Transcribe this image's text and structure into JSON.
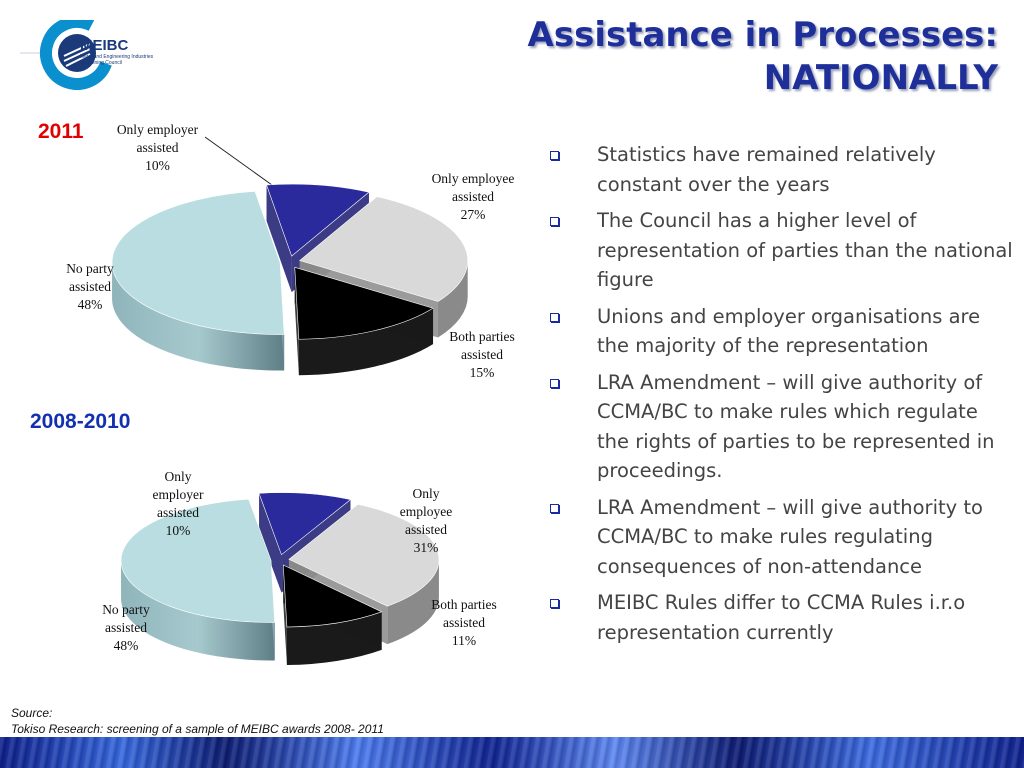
{
  "logo": {
    "text": "MEIBC",
    "subtitle": "Metal and Engineering Industries Bargaining Council"
  },
  "title": {
    "line1": "Assistance in Processes:",
    "line2": "NATIONALLY"
  },
  "chart_data": [
    {
      "type": "pie",
      "title": "2011",
      "slices": [
        {
          "label": "Only employer assisted",
          "value": 10,
          "display": "10%",
          "color": "#2b2a9c"
        },
        {
          "label": "Only employee assisted",
          "value": 27,
          "display": "27%",
          "color": "#d9d9d9"
        },
        {
          "label": "Both parties assisted",
          "value": 15,
          "display": "15%",
          "color": "#000000"
        },
        {
          "label": "No party assisted",
          "value": 48,
          "display": "48%",
          "color": "#b9dde0"
        }
      ]
    },
    {
      "type": "pie",
      "title": "2008-2010",
      "slices": [
        {
          "label": "Only employer assisted",
          "value": 10,
          "display": "10%",
          "color": "#2b2a9c"
        },
        {
          "label": "Only employee assisted",
          "value": 31,
          "display": "31%",
          "color": "#d9d9d9"
        },
        {
          "label": "Both parties assisted",
          "value": 11,
          "display": "11%",
          "color": "#000000"
        },
        {
          "label": "No party assisted",
          "value": 48,
          "display": "48%",
          "color": "#b9dde0"
        }
      ]
    }
  ],
  "labels": {
    "c1": {
      "employer": [
        "Only employer",
        "assisted",
        "10%"
      ],
      "employee": [
        "Only employee",
        "assisted",
        "27%"
      ],
      "both": [
        "Both parties",
        "assisted",
        "15%"
      ],
      "none": [
        "No party",
        "assisted",
        "48%"
      ]
    },
    "c2": {
      "employer": [
        "Only",
        "employer",
        "assisted",
        "10%"
      ],
      "employee": [
        "Only",
        "employee",
        "assisted",
        "31%"
      ],
      "both": [
        "Both parties",
        "assisted",
        "11%"
      ],
      "none": [
        "No party",
        "assisted",
        "48%"
      ]
    }
  },
  "bullets": [
    "Statistics have remained relatively constant over the years",
    "The Council has a higher level of representation of parties than the national figure",
    "Unions and employer organisations are the majority of the representation",
    "LRA Amendment – will give authority of CCMA/BC to make rules which regulate the rights of parties to be represented in proceedings.",
    "LRA Amendment – will give authority to CCMA/BC to make rules regulating consequences of non-attendance",
    "MEIBC Rules differ to CCMA Rules i.r.o representation currently"
  ],
  "source": {
    "label": "Source:",
    "text": "Tokiso Research: screening of a sample of MEIBC awards 2008- 2011"
  },
  "colors": {
    "title": "#1f2f9a",
    "year2011": "#e00000",
    "year2008": "#1230b0",
    "bullet_marker": "#1a2aa0"
  }
}
